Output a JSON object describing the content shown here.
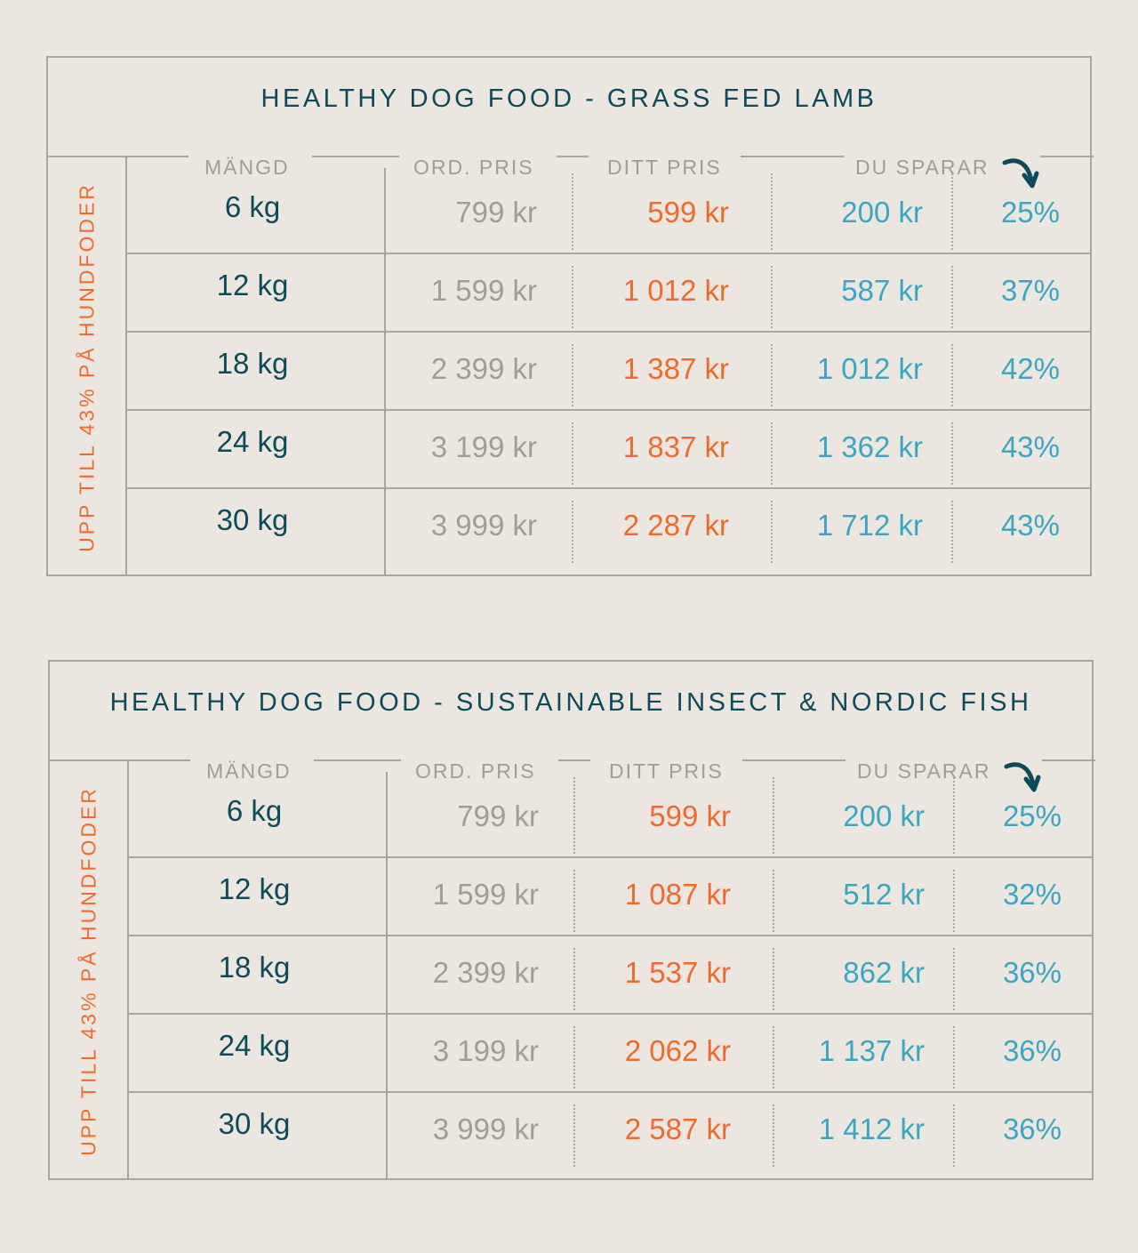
{
  "colors": {
    "background": "#ebe7e0",
    "title": "#0d4a5a",
    "accent_orange": "#ef6a2c",
    "accent_blue": "#3ba6c4",
    "muted": "#a09d99"
  },
  "tables": [
    {
      "title": "HEALTHY DOG FOOD - GRASS FED LAMB",
      "side_label": "UPP TILL 43% PÅ HUNDFODER",
      "headers": {
        "quantity": "MÄNGD",
        "ord_price": "ORD. PRIS",
        "your_price": "DITT PRIS",
        "you_save": "DU SPARAR"
      },
      "arrow_icon": "curved-arrow-down-icon",
      "rows": [
        {
          "quantity": "6 kg",
          "ord_price": "799 kr",
          "your_price": "599 kr",
          "save_amount": "200 kr",
          "save_percent": "25%"
        },
        {
          "quantity": "12 kg",
          "ord_price": "1 599 kr",
          "your_price": "1 012 kr",
          "save_amount": "587 kr",
          "save_percent": "37%"
        },
        {
          "quantity": "18 kg",
          "ord_price": "2 399 kr",
          "your_price": "1 387 kr",
          "save_amount": "1 012 kr",
          "save_percent": "42%"
        },
        {
          "quantity": "24 kg",
          "ord_price": "3 199 kr",
          "your_price": "1 837 kr",
          "save_amount": "1 362 kr",
          "save_percent": "43%"
        },
        {
          "quantity": "30 kg",
          "ord_price": "3 999 kr",
          "your_price": "2 287 kr",
          "save_amount": "1 712 kr",
          "save_percent": "43%"
        }
      ]
    },
    {
      "title": "HEALTHY DOG FOOD - SUSTAINABLE INSECT & NORDIC FISH",
      "side_label": "UPP TILL 43% PÅ HUNDFODER",
      "headers": {
        "quantity": "MÄNGD",
        "ord_price": "ORD. PRIS",
        "your_price": "DITT PRIS",
        "you_save": "DU SPARAR"
      },
      "arrow_icon": "curved-arrow-down-icon",
      "rows": [
        {
          "quantity": "6 kg",
          "ord_price": "799 kr",
          "your_price": "599 kr",
          "save_amount": "200 kr",
          "save_percent": "25%"
        },
        {
          "quantity": "12 kg",
          "ord_price": "1 599 kr",
          "your_price": "1 087 kr",
          "save_amount": "512 kr",
          "save_percent": "32%"
        },
        {
          "quantity": "18 kg",
          "ord_price": "2 399 kr",
          "your_price": "1 537 kr",
          "save_amount": "862 kr",
          "save_percent": "36%"
        },
        {
          "quantity": "24 kg",
          "ord_price": "3 199 kr",
          "your_price": "2 062 kr",
          "save_amount": "1 137 kr",
          "save_percent": "36%"
        },
        {
          "quantity": "30 kg",
          "ord_price": "3 999 kr",
          "your_price": "2 587 kr",
          "save_amount": "1 412 kr",
          "save_percent": "36%"
        }
      ]
    }
  ]
}
